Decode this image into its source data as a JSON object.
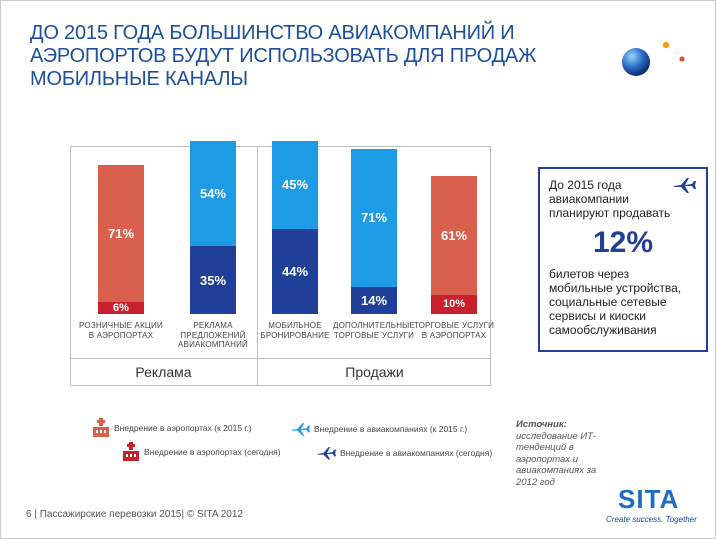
{
  "title": {
    "line1": "ДО 2015 ГОДА БОЛЬШИНСТВО АВИАКОМПАНИЙ И",
    "line2": "АЭРОПОРТОВ БУДУТ ИСПОЛЬЗОВАТЬ ДЛЯ ПРОДАЖ",
    "line3": "МОБИЛЬНЫЕ КАНАЛЫ"
  },
  "colors": {
    "airport_2015": "#d9604d",
    "airport_today": "#c8202d",
    "airline_2015": "#1e9be5",
    "airline_today": "#1f3f99",
    "title": "#1b4f9c"
  },
  "chart_data": {
    "type": "bar",
    "stacked": true,
    "groups": [
      {
        "label": "Реклама",
        "categories": [
          0,
          1
        ]
      },
      {
        "label": "Продажи",
        "categories": [
          2,
          3,
          4
        ]
      }
    ],
    "categories": [
      {
        "label": "РОЗНИЧНЫЕ АКЦИИ В АЭРОПОРТАХ",
        "bottom": 6,
        "top": 71,
        "bottom_series": "Внедрение в аэропортах (сегодня)",
        "top_series": "Внедрение в аэропортах (к 2015 г.)"
      },
      {
        "label": "РЕКЛАМА ПРЕДЛОЖЕНИЙ АВИАКОМПАНИЙ",
        "bottom": 35,
        "top": 54,
        "bottom_series": "Внедрение в авиакомпаниях (сегодня)",
        "top_series": "Внедрение в авиакомпаниях (к 2015 г.)"
      },
      {
        "label": "МОБИЛЬНОЕ БРОНИРОВАНИЕ",
        "bottom": 44,
        "top": 45,
        "bottom_series": "Внедрение в авиакомпаниях (сегодня)",
        "top_series": "Внедрение в авиакомпаниях (к 2015 г.)"
      },
      {
        "label": "ДОПОЛНИТЕЛЬНЫЕ ТОРГОВЫЕ УСЛУГИ",
        "bottom": 14,
        "top": 71,
        "bottom_series": "Внедрение в авиакомпаниях (сегодня)",
        "top_series": "Внедрение в авиакомпаниях (к 2015 г.)"
      },
      {
        "label": "ТОРГОВЫЕ УСЛУГИ В АЭРОПОРТАХ",
        "bottom": 10,
        "top": 61,
        "bottom_series": "Внедрение в аэропортах (сегодня)",
        "top_series": "Внедрение в аэропортах (к 2015 г.)"
      }
    ],
    "value_labels": [
      "71%",
      "6%",
      "54%",
      "35%",
      "45%",
      "44%",
      "71%",
      "14%",
      "61%",
      "10%"
    ],
    "ylim": [
      0,
      100
    ],
    "grid": false,
    "legend": [
      {
        "name": "Внедрение в аэропортах (к 2015 г.)",
        "icon": "airport-icon"
      },
      {
        "name": "Внедрение в авиакомпаниях (к 2015 г.)",
        "icon": "plane-icon"
      },
      {
        "name": "Внедрение в аэропортах (сегодня)",
        "icon": "airport-icon"
      },
      {
        "name": "Внедрение в авиакомпаниях (сегодня)",
        "icon": "plane-icon"
      }
    ]
  },
  "info_box": {
    "line1": "До 2015 года",
    "line2": "авиакомпании",
    "line3": "планируют продавать",
    "percent": "12%",
    "line4": "билетов через",
    "line5": "мобильные устройства,",
    "line6": "социальные сетевые",
    "line7": "сервисы и киоски",
    "line8": "самообслуживания",
    "icon": "plane-icon"
  },
  "source": {
    "label": "Источник:",
    "line1": "исследование ИТ-",
    "line2": "тенденций в",
    "line3": "аэропортах и",
    "line4": "авиакомпаниях за",
    "line5": "2012 год"
  },
  "footer": {
    "page": "6",
    "text": "| Пассажирские перевозки 2015| © SITA 2012"
  },
  "logo": {
    "name": "SITA",
    "tagline": "Create success. Together"
  }
}
